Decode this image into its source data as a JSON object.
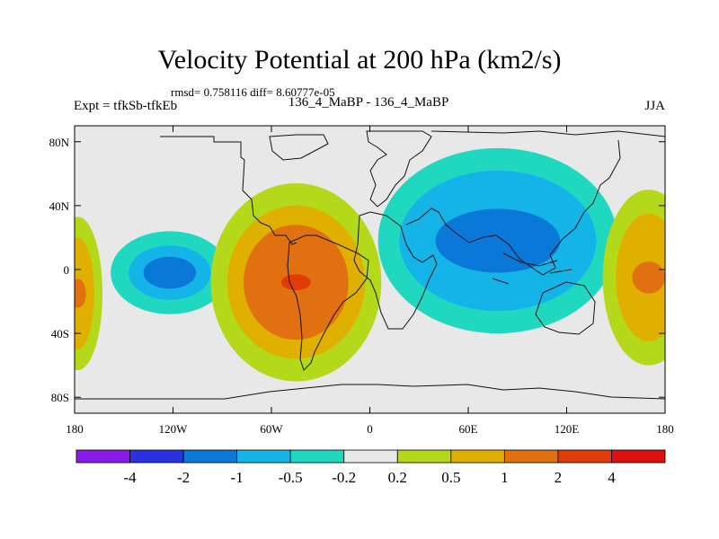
{
  "chart_data": {
    "type": "heatmap",
    "title": "Velocity Potential at 200 hPa (km2/s)",
    "stats_text": "rmsd= 0.758116 diff= 8.60777e-05",
    "left_label": "Expt = tfkSb-tfkEb",
    "center_label": "136_4_MaBP - 136_4_MaBP",
    "right_label": "JJA",
    "x_range": [
      -180,
      180
    ],
    "y_range": [
      -90,
      90
    ],
    "x_ticks": [
      {
        "value": -180,
        "label": "180"
      },
      {
        "value": -120,
        "label": "120W"
      },
      {
        "value": -60,
        "label": "60W"
      },
      {
        "value": 0,
        "label": "0"
      },
      {
        "value": 60,
        "label": "60E"
      },
      {
        "value": 120,
        "label": "120E"
      },
      {
        "value": 180,
        "label": "180"
      }
    ],
    "y_ticks": [
      {
        "value": 80,
        "label": "80N"
      },
      {
        "value": 40,
        "label": "40N"
      },
      {
        "value": 0,
        "label": "0"
      },
      {
        "value": -40,
        "label": "40S"
      },
      {
        "value": -80,
        "label": "80S"
      }
    ],
    "colorbar": {
      "colors": [
        "#8a1ae8",
        "#2a31e0",
        "#0a78d8",
        "#14b4e8",
        "#20d8c0",
        "#e8e8e8",
        "#b4d81a",
        "#e0b000",
        "#e07010",
        "#e03c08",
        "#dc1010"
      ],
      "labels": [
        "-4",
        "-2",
        "-1",
        "-0.5",
        "-0.2",
        "0.2",
        "0.5",
        "1",
        "2",
        "4"
      ]
    },
    "anomalies": [
      {
        "name": "east-pacific-negative",
        "lon": -122,
        "lat": -2,
        "levels": [
          {
            "level": 1,
            "rx": 36,
            "ry": 26
          },
          {
            "level": 2,
            "rx": 25,
            "ry": 17
          },
          {
            "level": 3,
            "rx": 16,
            "ry": 10
          }
        ]
      },
      {
        "name": "americas-positive",
        "lon": -45,
        "lat": -8,
        "levels": [
          {
            "level": 1,
            "rx": 52,
            "ry": 62
          },
          {
            "level": 2,
            "rx": 42,
            "ry": 48
          },
          {
            "level": 3,
            "rx": 32,
            "ry": 36
          },
          {
            "level": 4,
            "rx": 9,
            "ry": 5
          }
        ]
      },
      {
        "name": "asia-negative",
        "lon": 78,
        "lat": 18,
        "levels": [
          {
            "level": 1,
            "rx": 73,
            "ry": 58
          },
          {
            "level": 2,
            "rx": 60,
            "ry": 44
          },
          {
            "level": 3,
            "rx": 38,
            "ry": 20
          }
        ]
      },
      {
        "name": "pacific-positive-east",
        "lon": 170,
        "lat": -5,
        "levels": [
          {
            "level": 1,
            "rx": 28,
            "ry": 55
          },
          {
            "level": 2,
            "rx": 20,
            "ry": 40
          },
          {
            "level": 3,
            "rx": 10,
            "ry": 10
          }
        ]
      },
      {
        "name": "pacific-positive-west",
        "lon": -178,
        "lat": -15,
        "levels": [
          {
            "level": 1,
            "rx": 15,
            "ry": 48
          },
          {
            "level": 2,
            "rx": 10,
            "ry": 35
          },
          {
            "level": 3,
            "rx": 5,
            "ry": 9
          }
        ]
      }
    ]
  }
}
